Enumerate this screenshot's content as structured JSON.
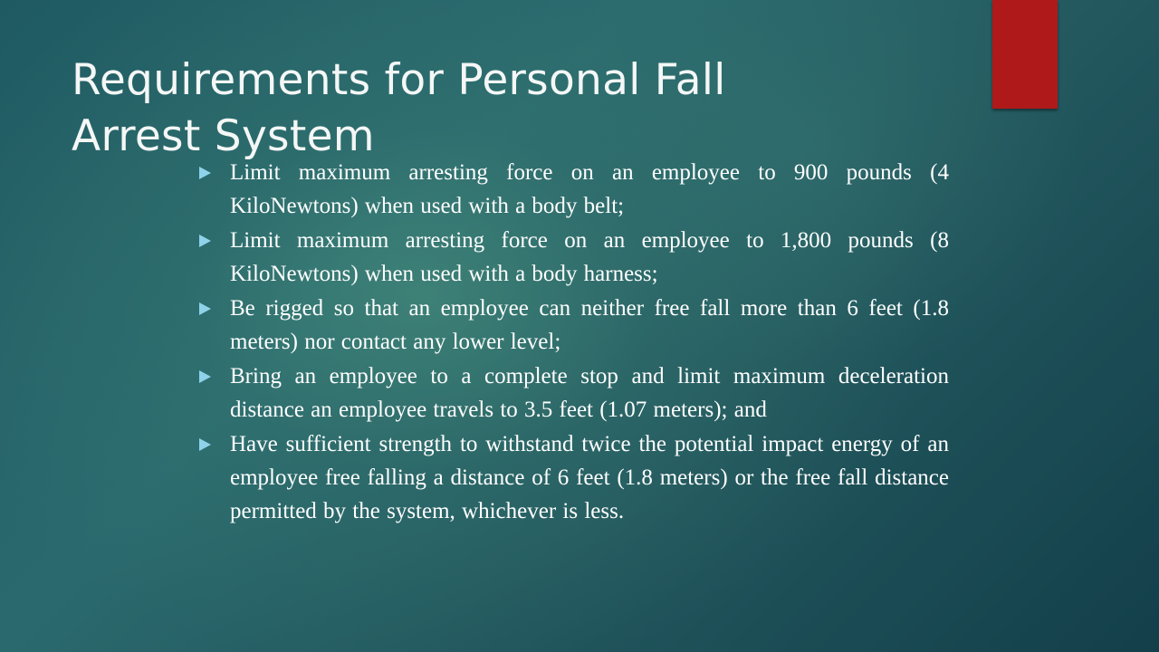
{
  "slide": {
    "title": "Requirements for Personal Fall Arrest System",
    "accent_color": "#b0191a",
    "bullet_color": "#8fd3ea",
    "bullets": [
      {
        "text": "Limit maximum arresting force on an employee to 900 pounds (4 KiloNewtons) when used with a body belt;"
      },
      {
        "text": "Limit maximum arresting force on an employee to 1,800 pounds (8 KiloNewtons) when used with a body harness;"
      },
      {
        "text": "Be rigged so that an employee can neither free fall more than 6 feet (1.8 meters) nor contact any lower level;"
      },
      {
        "text": "Bring an employee to a complete stop and limit maximum deceleration distance an employee travels to 3.5 feet (1.07 meters); and"
      },
      {
        "text": "Have sufficient strength to withstand twice the potential impact energy of an employee free falling a distance of 6 feet (1.8 meters) or the free fall distance permitted by the system, whichever is less."
      }
    ]
  }
}
